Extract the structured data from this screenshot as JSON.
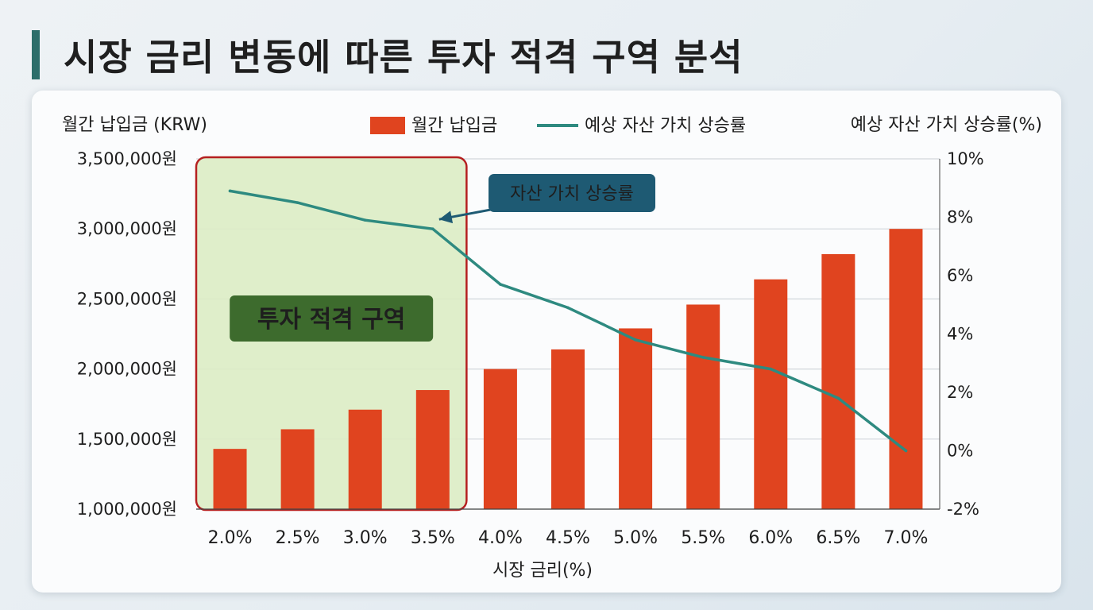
{
  "title": "시장 금리 변동에 따른 투자 적격 구역 분석",
  "colors": {
    "bar": "#e0441f",
    "line": "#2e8a80",
    "zone_fill": "#dcecc4",
    "zone_border": "#b52020",
    "zone_badge": "#3d6b2d",
    "callout": "#1e5a73",
    "title_accent": "#2c6e6a"
  },
  "chart_data": {
    "type": "bar",
    "xlabel": "시장 금리(%)",
    "ylabel_left": "월간 납입금 (KRW)",
    "ylabel_right": "예상 자산 가치 상승률(%)",
    "categories": [
      "2.0%",
      "2.5%",
      "3.0%",
      "3.5%",
      "4.0%",
      "4.5%",
      "5.0%",
      "5.5%",
      "6.0%",
      "6.5%",
      "7.0%"
    ],
    "y_left": {
      "lim": [
        1000000,
        3500000
      ],
      "ticks": [
        1000000,
        1500000,
        2000000,
        2500000,
        3000000,
        3500000
      ],
      "tick_labels": [
        "1,000,000원",
        "1,500,000원",
        "2,000,000원",
        "2,500,000원",
        "3,000,000원",
        "3,500,000원"
      ]
    },
    "y_right": {
      "lim": [
        -2,
        10
      ],
      "ticks": [
        -2,
        0,
        2,
        4,
        6,
        8,
        10
      ],
      "tick_labels": [
        "-2%",
        "0%",
        "2%",
        "4%",
        "6%",
        "8%",
        "10%"
      ]
    },
    "series": [
      {
        "name": "월간 납입금",
        "type": "bar",
        "axis": "left",
        "values": [
          1430000,
          1570000,
          1710000,
          1850000,
          2000000,
          2140000,
          2290000,
          2460000,
          2640000,
          2820000,
          3000000
        ]
      },
      {
        "name": "예상 자산 가치 상승률",
        "type": "line",
        "axis": "right",
        "values": [
          8.9,
          8.5,
          7.9,
          7.6,
          5.7,
          4.9,
          3.8,
          3.2,
          2.8,
          1.8,
          0.0
        ]
      }
    ],
    "grid": "horizontal",
    "legend_position": "top-center",
    "annotations": {
      "zone_label": "투자 적격 구역",
      "zone_categories": [
        "2.0%",
        "2.5%",
        "3.0%",
        "3.5%"
      ],
      "callout_label": "자산 가치 상승률",
      "callout_target": "3.5%"
    }
  }
}
